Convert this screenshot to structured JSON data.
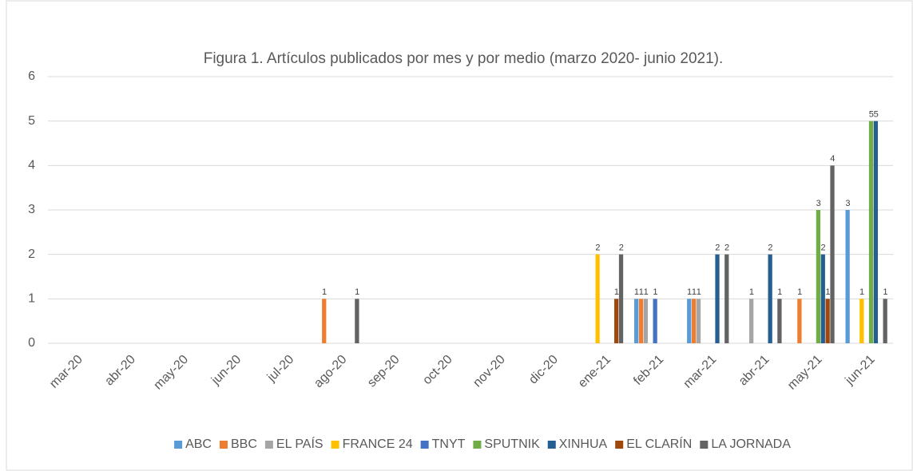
{
  "chart_data": {
    "type": "bar",
    "title": "Figura 1. Artículos publicados por mes y por medio (marzo 2020- junio 2021).",
    "categories": [
      "mar-20",
      "abr-20",
      "may-20",
      "jun-20",
      "jul-20",
      "ago-20",
      "sep-20",
      "oct-20",
      "nov-20",
      "dic-20",
      "ene-21",
      "feb-21",
      "mar-21",
      "abr-21",
      "may-21",
      "jun-21"
    ],
    "series": [
      {
        "name": "ABC",
        "color": "#5b9bd5",
        "values": [
          0,
          0,
          0,
          0,
          0,
          0,
          0,
          0,
          0,
          0,
          0,
          1,
          1,
          0,
          0,
          3
        ]
      },
      {
        "name": "BBC",
        "color": "#ed7d31",
        "values": [
          0,
          0,
          0,
          0,
          0,
          1,
          0,
          0,
          0,
          0,
          0,
          1,
          1,
          0,
          1,
          0
        ]
      },
      {
        "name": "EL PAÍS",
        "color": "#a5a5a5",
        "values": [
          0,
          0,
          0,
          0,
          0,
          0,
          0,
          0,
          0,
          0,
          0,
          1,
          1,
          1,
          0,
          0
        ]
      },
      {
        "name": "FRANCE 24",
        "color": "#ffc000",
        "values": [
          0,
          0,
          0,
          0,
          0,
          0,
          0,
          0,
          0,
          0,
          2,
          0,
          0,
          0,
          0,
          1
        ]
      },
      {
        "name": "TNYT",
        "color": "#4472c4",
        "values": [
          0,
          0,
          0,
          0,
          0,
          0,
          0,
          0,
          0,
          0,
          0,
          1,
          0,
          0,
          0,
          0
        ]
      },
      {
        "name": "SPUTNIK",
        "color": "#70ad47",
        "values": [
          0,
          0,
          0,
          0,
          0,
          0,
          0,
          0,
          0,
          0,
          0,
          0,
          0,
          0,
          3,
          5
        ]
      },
      {
        "name": "XINHUA",
        "color": "#255e91",
        "values": [
          0,
          0,
          0,
          0,
          0,
          0,
          0,
          0,
          0,
          0,
          0,
          0,
          2,
          2,
          2,
          5
        ]
      },
      {
        "name": "EL CLARÍN",
        "color": "#9e480e",
        "values": [
          0,
          0,
          0,
          0,
          0,
          0,
          0,
          0,
          0,
          0,
          1,
          0,
          0,
          0,
          1,
          0
        ]
      },
      {
        "name": "LA JORNADA",
        "color": "#636363",
        "values": [
          0,
          0,
          0,
          0,
          0,
          1,
          0,
          0,
          0,
          0,
          2,
          0,
          2,
          1,
          4,
          1
        ]
      }
    ],
    "ylim": [
      0,
      6
    ],
    "yticks": [
      0,
      1,
      2,
      3,
      4,
      5,
      6
    ],
    "grid": true,
    "legend": "bottom"
  }
}
